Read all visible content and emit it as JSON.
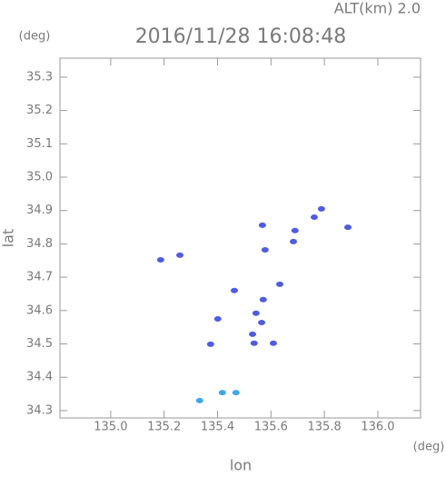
{
  "chart_data": {
    "type": "scatter",
    "subtitle": "ALT(km) 2.0",
    "title": "2016/11/28 16:08:48",
    "ylabel": "lat",
    "yunit": "(deg)",
    "xlabel": "lon",
    "xunit": "(deg)",
    "xlim": [
      134.81,
      136.16
    ],
    "ylim": [
      34.278,
      35.357
    ],
    "xticks": [
      {
        "value": 135,
        "label": "135.0"
      },
      135.2,
      135.4,
      135.6,
      135.8,
      {
        "value": 136,
        "label": "136.0"
      }
    ],
    "yticks": [
      34.3,
      34.4,
      34.5,
      34.6,
      34.7,
      34.8,
      34.9,
      {
        "value": 35,
        "label": "35.0"
      },
      35.1,
      35.2,
      35.3
    ],
    "series": [
      {
        "color": "#4f5ce0",
        "x": [
          135.187,
          135.259,
          135.568,
          135.578,
          135.762,
          135.789,
          135.69,
          135.684,
          135.888,
          135.633,
          135.463,
          135.571,
          135.544,
          135.401,
          135.565,
          135.531,
          135.374,
          135.609,
          135.537
        ],
        "y": [
          34.752,
          34.766,
          34.856,
          34.782,
          34.88,
          34.905,
          34.84,
          34.807,
          34.85,
          34.679,
          34.66,
          34.633,
          34.592,
          34.575,
          34.564,
          34.529,
          34.499,
          34.502,
          34.502
        ]
      },
      {
        "color": "#3fa8ec",
        "x": [
          135.333,
          135.418,
          135.469
        ],
        "y": [
          34.33,
          34.354,
          34.354
        ]
      }
    ]
  }
}
